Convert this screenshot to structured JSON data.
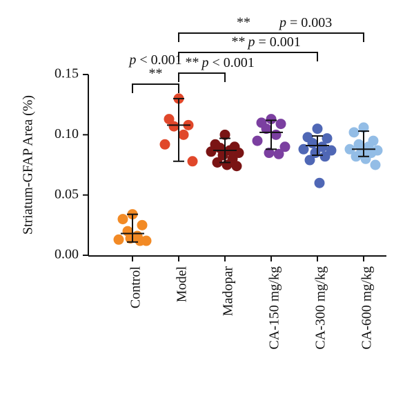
{
  "chart_data": {
    "type": "dot",
    "ylabel": "Striatum-GFAP Area (%)",
    "categories": [
      "Control",
      "Model",
      "Madopar",
      "CA-150 mg/kg",
      "CA-300 mg/kg",
      "CA-600 mg/kg"
    ],
    "colors": [
      "#f28a25",
      "#e0472a",
      "#7a1414",
      "#7b3fa0",
      "#4f67b5",
      "#93bde6"
    ],
    "points": [
      [
        0.034,
        0.03,
        0.025,
        0.02,
        0.016,
        0.013,
        0.012,
        0.014,
        0.012
      ],
      [
        0.13,
        0.113,
        0.108,
        0.107,
        0.1,
        0.092,
        0.078
      ],
      [
        0.1,
        0.092,
        0.09,
        0.089,
        0.087,
        0.086,
        0.085,
        0.083,
        0.08,
        0.077,
        0.075,
        0.074
      ],
      [
        0.113,
        0.11,
        0.109,
        0.105,
        0.1,
        0.095,
        0.09,
        0.085,
        0.084
      ],
      [
        0.105,
        0.098,
        0.097,
        0.093,
        0.09,
        0.088,
        0.087,
        0.085,
        0.082,
        0.079,
        0.06
      ],
      [
        0.106,
        0.102,
        0.095,
        0.092,
        0.09,
        0.088,
        0.087,
        0.086,
        0.085,
        0.082,
        0.08,
        0.075
      ]
    ],
    "means": [
      0.018,
      0.108,
      0.087,
      0.102,
      0.091,
      0.088
    ],
    "sd_low": [
      0.011,
      0.078,
      0.077,
      0.088,
      0.083,
      0.082
    ],
    "sd_high": [
      0.034,
      0.13,
      0.097,
      0.112,
      0.099,
      0.103
    ],
    "ylim": [
      0,
      0.15
    ],
    "yticks": [
      {
        "value": 0,
        "label": "0.00"
      },
      {
        "value": 0.05,
        "label": "0.05"
      },
      {
        "value": 0.1,
        "label": "0.10"
      },
      {
        "value": 0.15,
        "label": "0.15"
      }
    ],
    "annotations": [
      {
        "from": "Control",
        "to": "Model",
        "stars": "**",
        "text": "p < 0.001"
      },
      {
        "from": "Model",
        "to": "Madopar",
        "stars": "**",
        "text": "p < 0.001"
      },
      {
        "from": "Model",
        "to": "CA-300 mg/kg",
        "stars": "**",
        "text": "p = 0.001"
      },
      {
        "from": "Model",
        "to": "CA-600 mg/kg",
        "stars": "**",
        "text": "p = 0.003"
      }
    ]
  }
}
